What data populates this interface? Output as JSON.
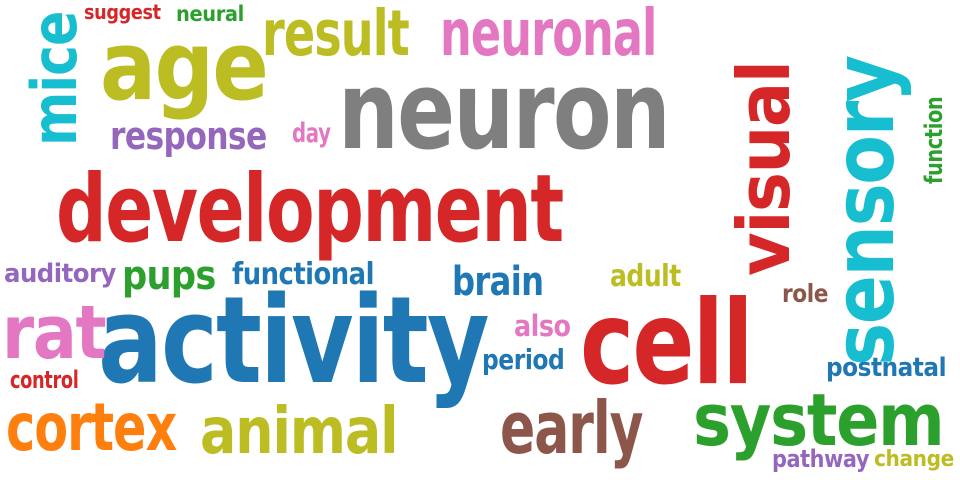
{
  "words": [
    {
      "text": "development",
      "color": "#d62728"
    },
    {
      "text": "neuron",
      "color": "#7f7f7f"
    },
    {
      "text": "activity",
      "color": "#1f77b4"
    },
    {
      "text": "sensory",
      "color": "#17becf"
    },
    {
      "text": "visual",
      "color": "#d62728"
    },
    {
      "text": "cell",
      "color": "#d62728"
    },
    {
      "text": "age",
      "color": "#bcbd22"
    },
    {
      "text": "system",
      "color": "#2ca02c"
    },
    {
      "text": "neuronal",
      "color": "#e377c2"
    },
    {
      "text": "result",
      "color": "#bcbd22"
    },
    {
      "text": "cortex",
      "color": "#ff7f0e"
    },
    {
      "text": "animal",
      "color": "#bcbd22"
    },
    {
      "text": "early",
      "color": "#8c564b"
    },
    {
      "text": "rat",
      "color": "#e377c2"
    },
    {
      "text": "mice",
      "color": "#17becf"
    },
    {
      "text": "response",
      "color": "#9467bd"
    },
    {
      "text": "brain",
      "color": "#1f77b4"
    },
    {
      "text": "pups",
      "color": "#2ca02c"
    },
    {
      "text": "functional",
      "color": "#1f77b4"
    },
    {
      "text": "auditory",
      "color": "#9467bd"
    },
    {
      "text": "adult",
      "color": "#bcbd22"
    },
    {
      "text": "also",
      "color": "#e377c2"
    },
    {
      "text": "period",
      "color": "#1f77b4"
    },
    {
      "text": "role",
      "color": "#8c564b"
    },
    {
      "text": "postnatal",
      "color": "#1f77b4"
    },
    {
      "text": "control",
      "color": "#d62728"
    },
    {
      "text": "pathway",
      "color": "#9467bd"
    },
    {
      "text": "change",
      "color": "#bcbd22"
    },
    {
      "text": "function",
      "color": "#2ca02c"
    },
    {
      "text": "suggest",
      "color": "#d62728"
    },
    {
      "text": "neural",
      "color": "#2ca02c"
    },
    {
      "text": "day",
      "color": "#e377c2"
    }
  ]
}
